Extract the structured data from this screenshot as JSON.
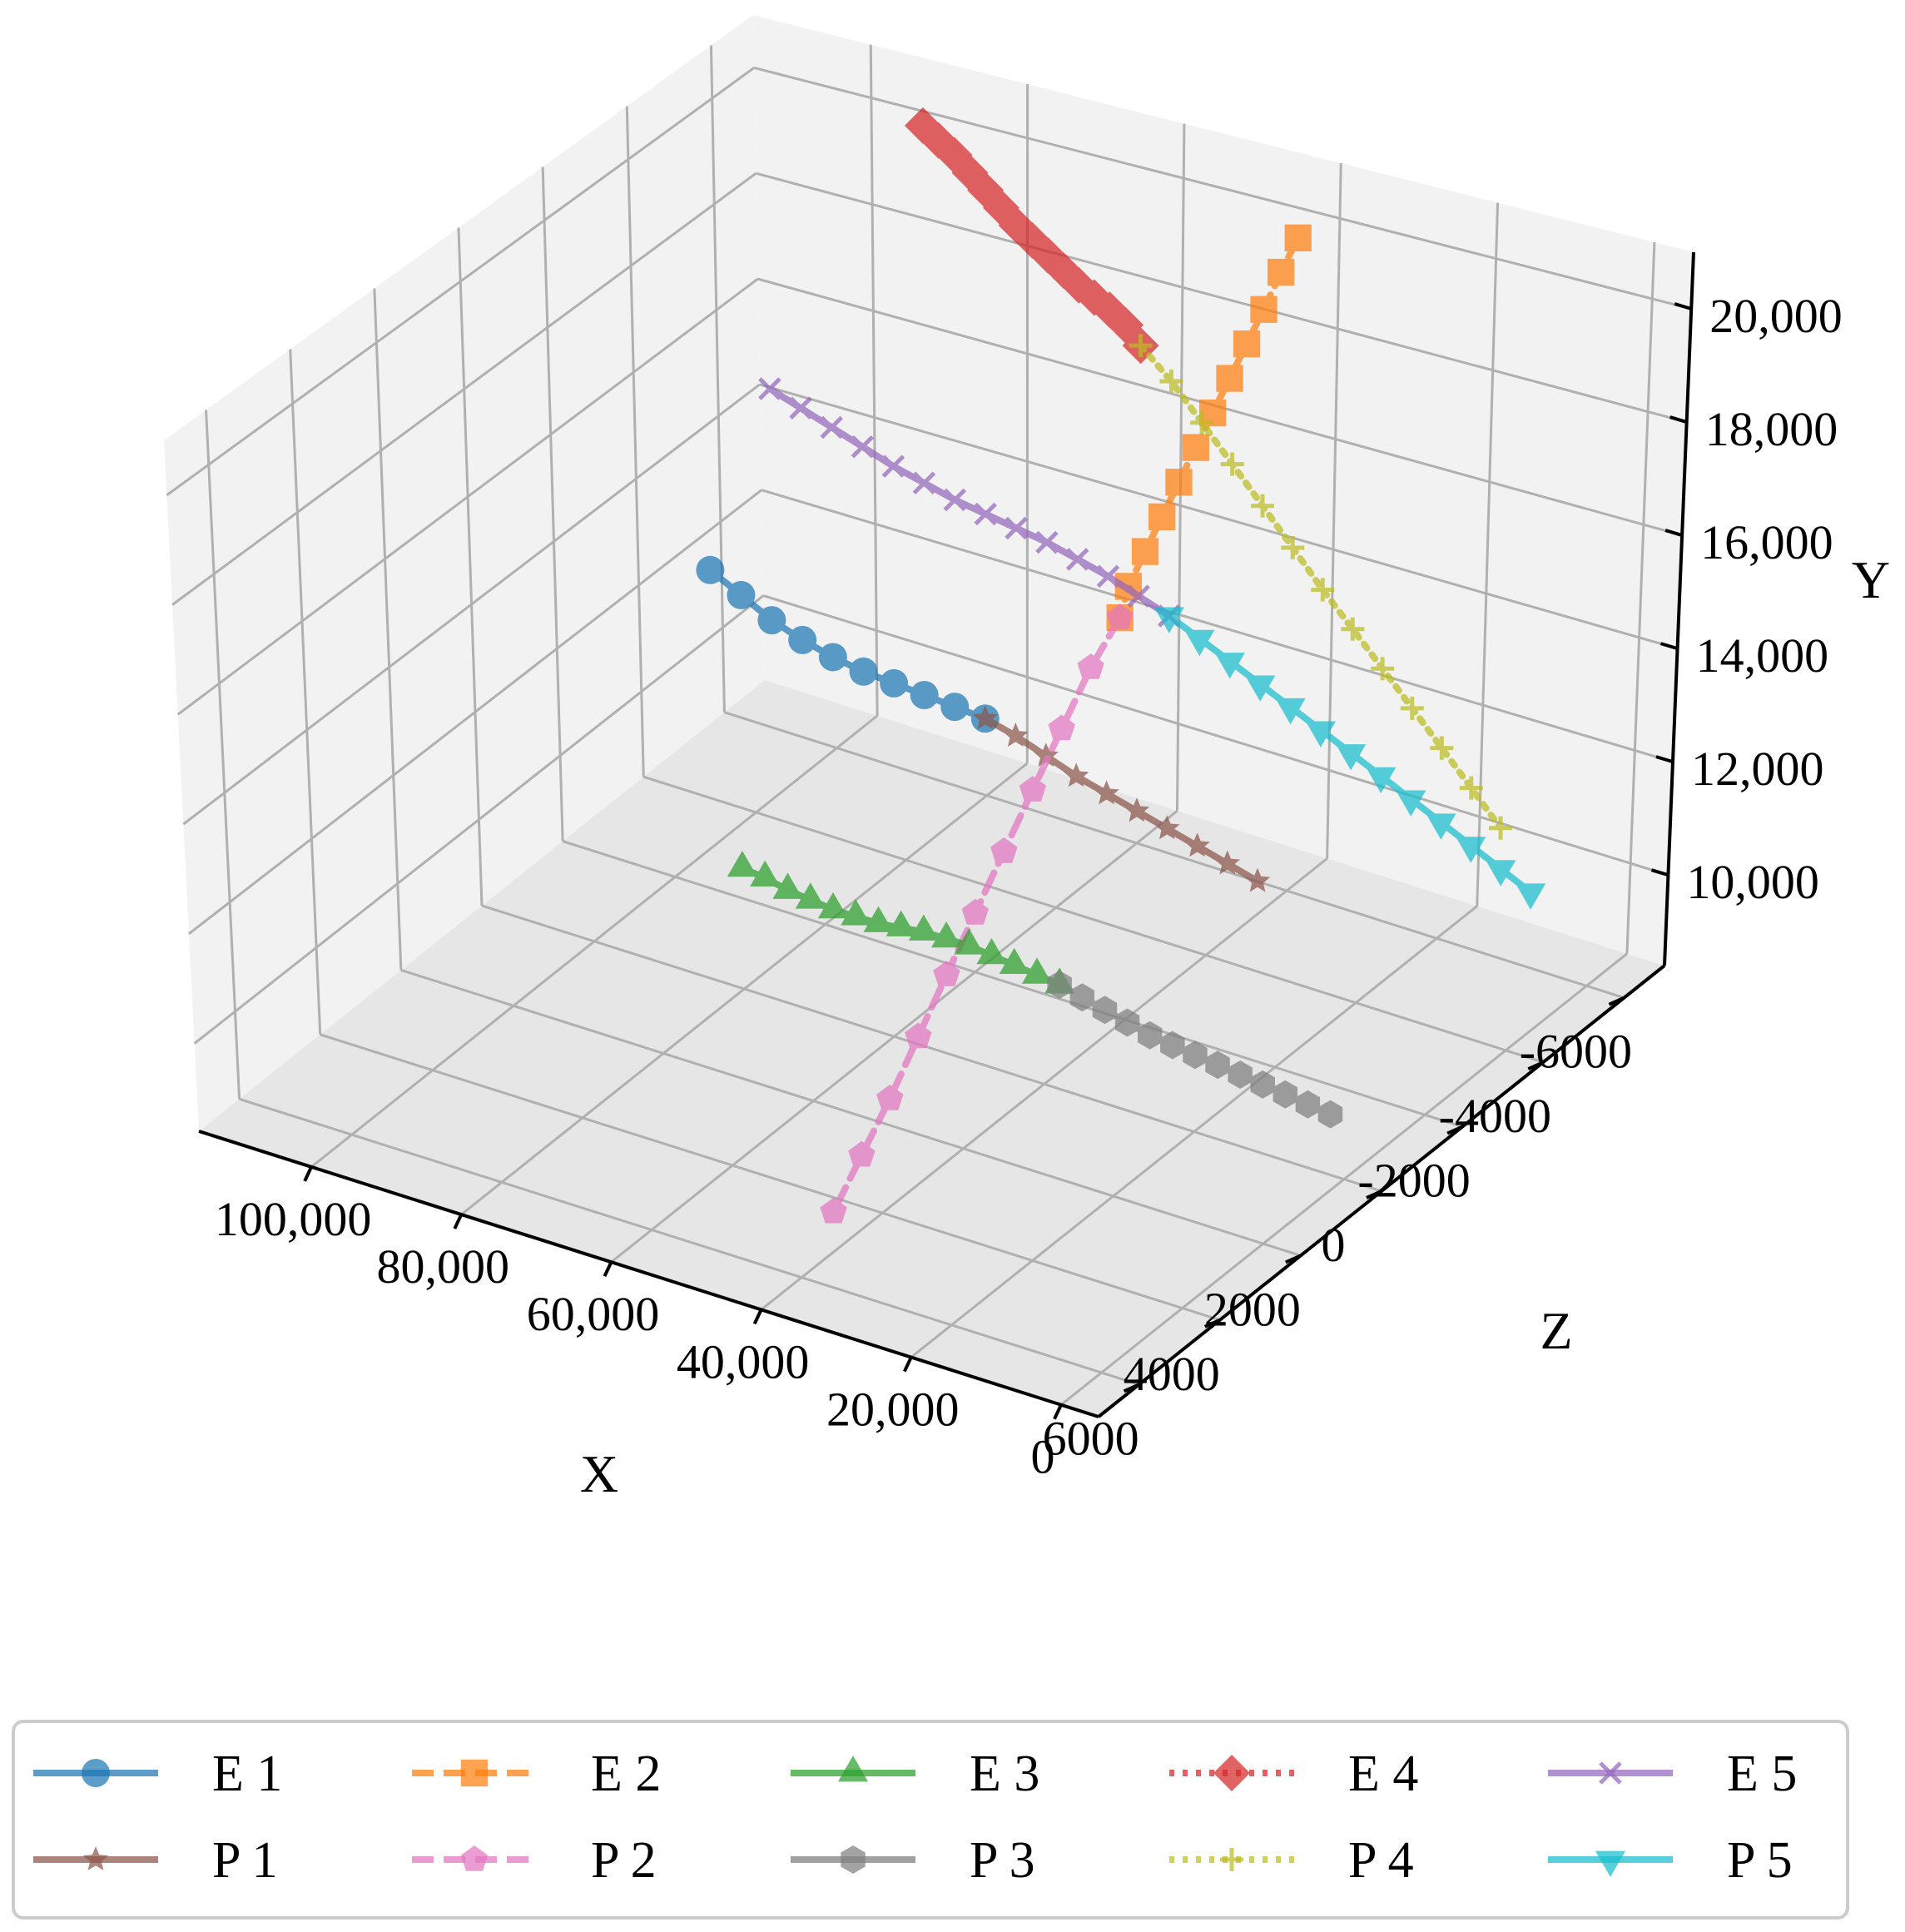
{
  "chart_data": {
    "type": "line3d",
    "title": "",
    "xlabel": "X",
    "ylabel": "Y",
    "zlabel": "Z",
    "xlim": [
      -5000,
      115000
    ],
    "ylim": [
      8400,
      21000
    ],
    "zlim": [
      -7000,
      7000
    ],
    "x_ticks": [
      0,
      20000,
      40000,
      60000,
      80000,
      100000
    ],
    "x_tick_labels": [
      "0",
      "20,000",
      "40,000",
      "60,000",
      "80,000",
      "100,000"
    ],
    "y_ticks": [
      10000,
      12000,
      14000,
      16000,
      18000,
      20000
    ],
    "y_tick_labels": [
      "10,000",
      "12,000",
      "14,000",
      "16,000",
      "18,000",
      "20,000"
    ],
    "z_ticks": [
      -6000,
      -4000,
      -2000,
      0,
      2000,
      4000,
      6000
    ],
    "z_tick_labels": [
      "-6000",
      "-4000",
      "-2000",
      "0",
      "2000",
      "4000",
      "6000"
    ],
    "grid": true,
    "legend_position": "bottom",
    "series": [
      {
        "name": "E 1",
        "color": "#1f77b4",
        "marker": "circle",
        "linestyle": "solid",
        "x": [
          100000,
          96000,
          92000,
          88000,
          84000,
          80000,
          76000,
          72000,
          68000,
          64000
        ],
        "y": [
          13500,
          13200,
          12900,
          12700,
          12550,
          12450,
          12400,
          12350,
          12300,
          12250
        ],
        "z": [
          -3000,
          -3000,
          -3000,
          -3000,
          -3000,
          -3000,
          -3000,
          -3000,
          -3000,
          -3000
        ]
      },
      {
        "name": "P 1",
        "color": "#8c564b",
        "marker": "star",
        "linestyle": "solid",
        "x": [
          64000,
          60000,
          56000,
          52000,
          48000,
          44000,
          40000,
          36000,
          32000,
          28000
        ],
        "y": [
          12250,
          12100,
          11900,
          11700,
          11550,
          11400,
          11250,
          11100,
          10950,
          10800
        ],
        "z": [
          -3000,
          -3000,
          -3000,
          -3000,
          -3000,
          -3000,
          -3000,
          -3000,
          -3000,
          -3000
        ]
      },
      {
        "name": "E 2",
        "color": "#ff7f0e",
        "marker": "square",
        "linestyle": "dashed",
        "x": [
          40000,
          40000,
          40000,
          40000,
          40000,
          40000,
          40000,
          40000,
          40000,
          40000,
          40000,
          40000
        ],
        "y": [
          20200,
          19800,
          19350,
          18950,
          18550,
          18150,
          17750,
          17350,
          16950,
          16550,
          16150,
          15700
        ],
        "z": [
          -6000,
          -5600,
          -5200,
          -4800,
          -4400,
          -4000,
          -3600,
          -3200,
          -2800,
          -2400,
          -2000,
          -1800
        ]
      },
      {
        "name": "P 2",
        "color": "#e377c2",
        "marker": "pentagon",
        "linestyle": "dashed",
        "x": [
          40000,
          40000,
          40000,
          40000,
          40000,
          40000,
          40000,
          40000,
          40000,
          40000,
          40000
        ],
        "y": [
          15700,
          15200,
          14500,
          13800,
          13100,
          12400,
          11700,
          11000,
          10300,
          9700,
          9100
        ],
        "z": [
          -1800,
          -1100,
          -400,
          300,
          1000,
          1700,
          2400,
          3100,
          3800,
          4500,
          5200
        ]
      },
      {
        "name": "E 3",
        "color": "#2ca02c",
        "marker": "triangle-up",
        "linestyle": "solid",
        "x": [
          80000,
          77000,
          74000,
          71000,
          68000,
          65000,
          62000,
          59000,
          56000,
          53000,
          50000,
          47000,
          44000,
          41000,
          38000
        ],
        "y": [
          10600,
          10550,
          10450,
          10400,
          10350,
          10350,
          10350,
          10400,
          10450,
          10450,
          10450,
          10400,
          10350,
          10300,
          10250
        ],
        "z": [
          0,
          0,
          0,
          0,
          0,
          0,
          0,
          0,
          0,
          0,
          0,
          0,
          0,
          0,
          0
        ]
      },
      {
        "name": "P 3",
        "color": "#7f7f7f",
        "marker": "hexagon",
        "linestyle": "solid",
        "x": [
          38000,
          35000,
          32000,
          29000,
          26000,
          23000,
          20000,
          17000,
          14000,
          11000,
          8000,
          5000,
          2000
        ],
        "y": [
          10250,
          10150,
          10050,
          9950,
          9850,
          9800,
          9750,
          9700,
          9650,
          9600,
          9550,
          9500,
          9450
        ],
        "z": [
          0,
          0,
          0,
          0,
          0,
          0,
          0,
          0,
          0,
          0,
          0,
          0,
          0
        ]
      },
      {
        "name": "E 4",
        "color": "#d62728",
        "marker": "diamond",
        "linestyle": "dotted",
        "x": [
          88000,
          86000,
          84000,
          82000,
          80000,
          78000,
          76000,
          74000,
          72000,
          70000,
          68000,
          66000,
          64000,
          62000,
          60000
        ],
        "y": [
          20500,
          20300,
          20100,
          19850,
          19600,
          19350,
          19100,
          18900,
          18700,
          18500,
          18300,
          18150,
          18000,
          17800,
          17500
        ],
        "z": [
          -6000,
          -6000,
          -6000,
          -6000,
          -6000,
          -6000,
          -6000,
          -6000,
          -6000,
          -6000,
          -6000,
          -6000,
          -6000,
          -6000,
          -6000
        ]
      },
      {
        "name": "P 4",
        "color": "#bcbd22",
        "marker": "plus",
        "linestyle": "dotted",
        "x": [
          60000,
          56000,
          52000,
          48000,
          44000,
          40000,
          36000,
          32000,
          28000,
          24000,
          20000,
          16000,
          12000
        ],
        "y": [
          17500,
          17000,
          16400,
          15800,
          15200,
          14600,
          14000,
          13450,
          12900,
          12350,
          11800,
          11250,
          10700
        ],
        "z": [
          -6000,
          -6000,
          -6000,
          -6000,
          -6000,
          -6000,
          -6000,
          -6000,
          -6000,
          -6000,
          -6000,
          -6000,
          -6000
        ]
      },
      {
        "name": "E 5",
        "color": "#9467bd",
        "marker": "x",
        "linestyle": "solid",
        "x": [
          100000,
          96000,
          92000,
          88000,
          84000,
          80000,
          76000,
          72000,
          68000,
          64000,
          60000,
          56000,
          52000,
          48000
        ],
        "y": [
          16000,
          15800,
          15600,
          15400,
          15200,
          15050,
          14900,
          14800,
          14700,
          14600,
          14450,
          14300,
          14100,
          13900
        ],
        "z": [
          -4500,
          -4500,
          -4500,
          -4500,
          -4500,
          -4500,
          -4500,
          -4500,
          -4500,
          -4500,
          -4500,
          -4500,
          -4500,
          -4500
        ]
      },
      {
        "name": "P 5",
        "color": "#17becf",
        "marker": "triangle-down",
        "linestyle": "solid",
        "x": [
          48000,
          44000,
          40000,
          36000,
          32000,
          28000,
          24000,
          20000,
          16000,
          12000,
          8000,
          4000,
          0
        ],
        "y": [
          13900,
          13650,
          13400,
          13150,
          12900,
          12650,
          12400,
          12150,
          11900,
          11650,
          11400,
          11150,
          10900
        ],
        "z": [
          -4500,
          -4500,
          -4500,
          -4500,
          -4500,
          -4500,
          -4500,
          -4500,
          -4500,
          -4500,
          -4500,
          -4500,
          -4500
        ]
      }
    ]
  }
}
